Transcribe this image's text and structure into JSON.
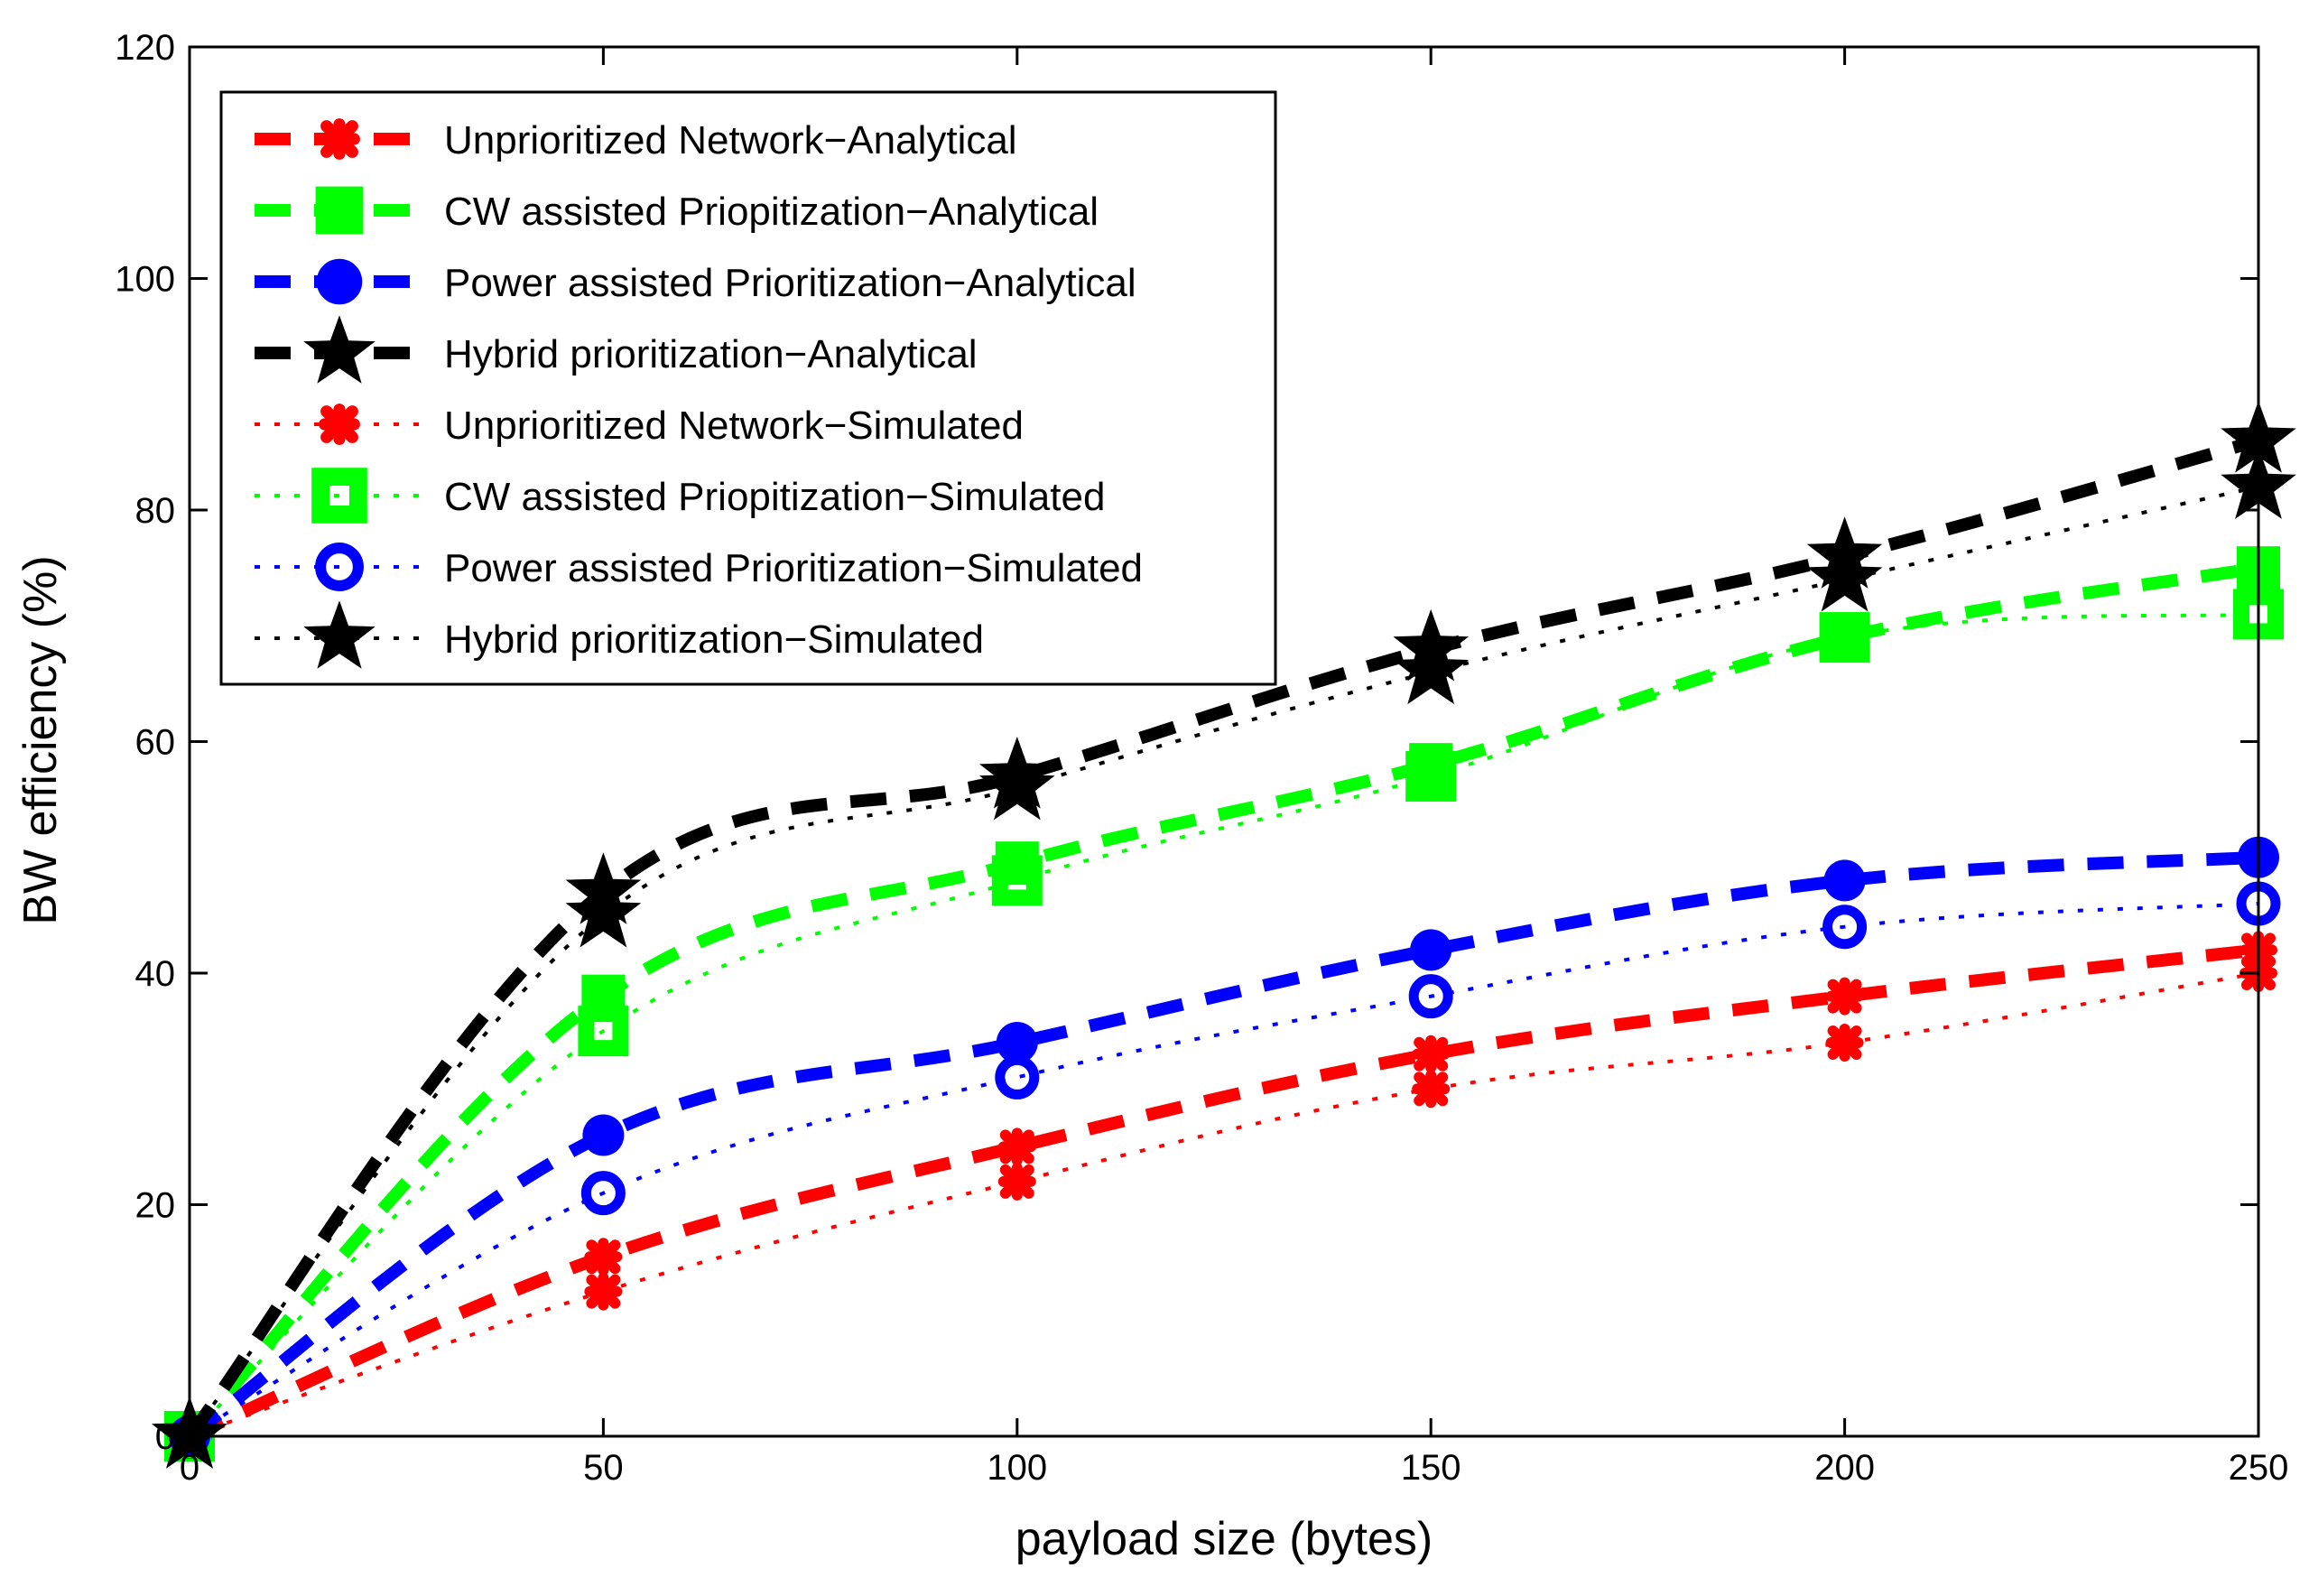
{
  "chart_data": {
    "type": "line",
    "title": "",
    "xlabel": "payload size (bytes)",
    "ylabel": "BW efficiency (%)",
    "xlim": [
      0,
      250
    ],
    "ylim": [
      0,
      120
    ],
    "xticks": [
      0,
      50,
      100,
      150,
      200,
      250
    ],
    "yticks": [
      0,
      20,
      40,
      60,
      80,
      100,
      120
    ],
    "xtick_labels": [
      "0",
      "50",
      "100",
      "150",
      "200",
      "250"
    ],
    "ytick_labels": [
      "0",
      "20",
      "40",
      "60",
      "80",
      "100",
      "120"
    ],
    "grid": false,
    "legend_position": "top-left",
    "x": [
      0,
      50,
      100,
      150,
      200,
      250
    ],
    "series": [
      {
        "name": " Unprioritized Network−Analytical",
        "color": "#ff0000",
        "style": "dashed",
        "marker": "x-bold",
        "values": [
          0,
          15.5,
          25,
          33,
          38,
          42
        ]
      },
      {
        "name": "CW assisted Priopitization−Analytical",
        "color": "#00ff00",
        "style": "dashed",
        "marker": "square",
        "values": [
          0,
          38,
          49.5,
          58,
          69,
          75
        ]
      },
      {
        "name": "Power assisted Prioritization−Analytical",
        "color": "#0000ff",
        "style": "dashed",
        "marker": "circle",
        "values": [
          0,
          26,
          34,
          42,
          48,
          50
        ]
      },
      {
        "name": "Hybrid prioritization−Analytical",
        "color": "#000000",
        "style": "dashed",
        "marker": "star",
        "values": [
          0,
          47,
          57,
          68,
          76,
          86
        ]
      },
      {
        "name": " Unprioritized Network−Simulated",
        "color": "#ff0000",
        "style": "dotted",
        "marker": "x-bold",
        "values": [
          0,
          12.5,
          22,
          30,
          34,
          40
        ]
      },
      {
        "name": "CW assisted Priopitization−Simulated",
        "color": "#00ff00",
        "style": "dotted",
        "marker": "square-open",
        "values": [
          0,
          35,
          48,
          57,
          69,
          71
        ]
      },
      {
        "name": "Power assisted Prioritization−Simulated",
        "color": "#0000ff",
        "style": "dotted",
        "marker": "circle-open",
        "values": [
          0,
          21,
          31,
          38,
          44,
          46
        ]
      },
      {
        "name": "Hybrid prioritization−Simulated",
        "color": "#000000",
        "style": "dotted",
        "marker": "star",
        "values": [
          0,
          45,
          56,
          66,
          74,
          82
        ]
      }
    ]
  }
}
